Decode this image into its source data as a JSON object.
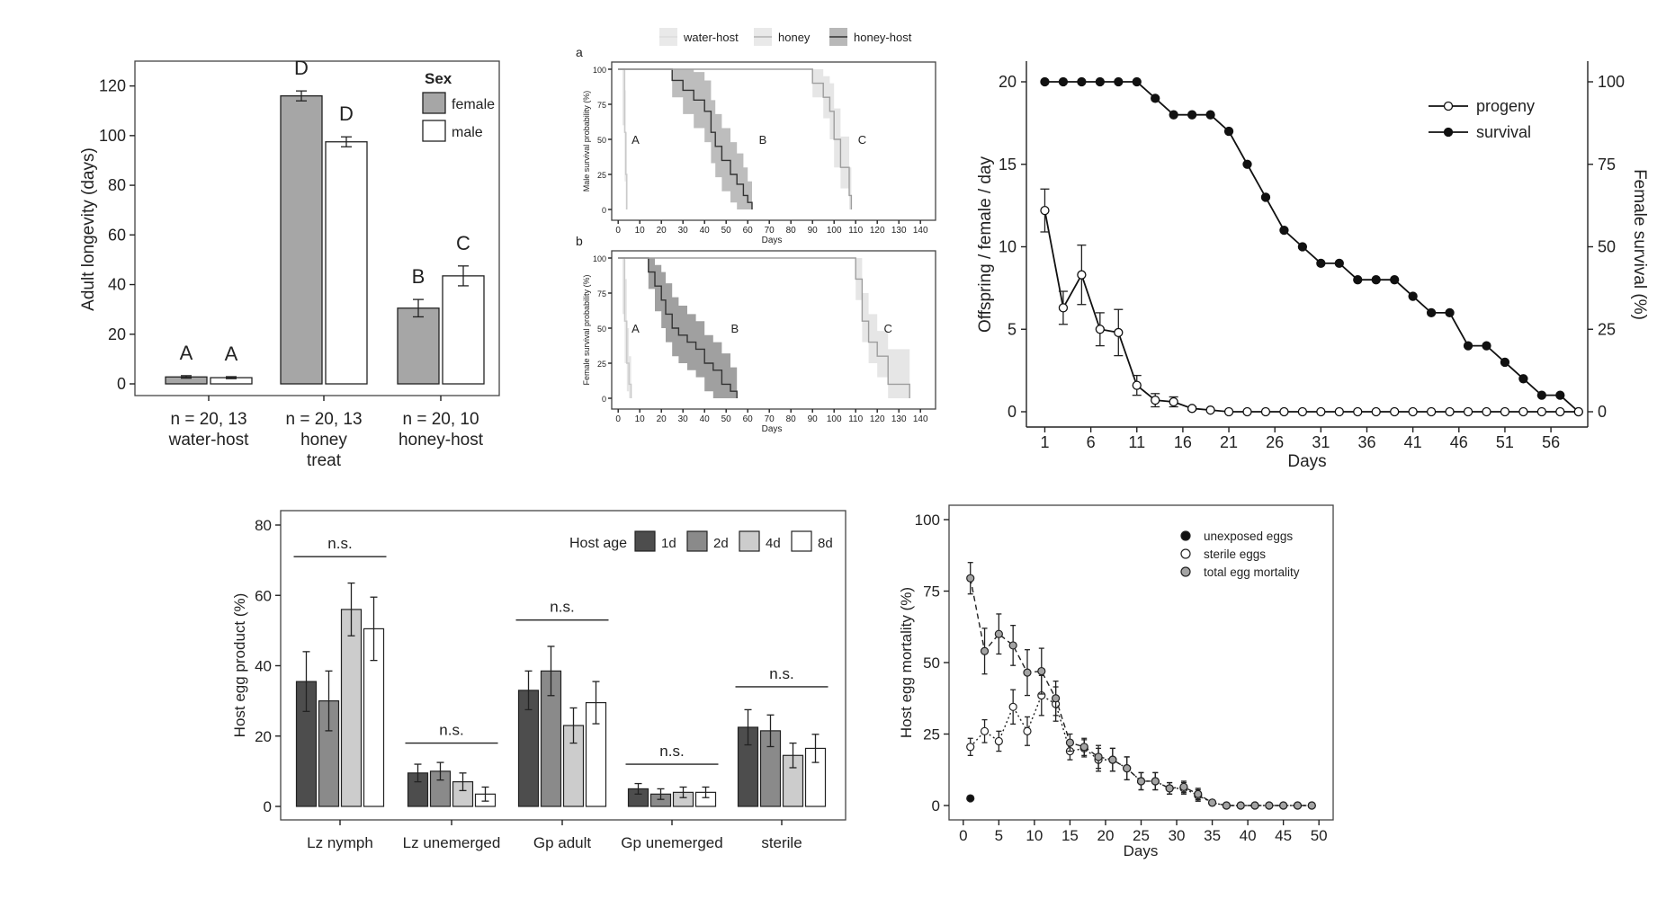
{
  "chart_data": [
    {
      "id": "longevity",
      "type": "bar",
      "ylabel": "Adult longevity (days)",
      "ylim": [
        0,
        130
      ],
      "yticks": [
        0,
        20,
        40,
        60,
        80,
        100,
        120
      ],
      "legend": {
        "title": "Sex",
        "position": "top-right",
        "entries": [
          "female",
          "male"
        ]
      },
      "categories": [
        {
          "lines": [
            "n = 20, 13",
            "water-host"
          ]
        },
        {
          "lines": [
            "n = 20, 13",
            "honey",
            "treat"
          ]
        },
        {
          "lines": [
            "n = 20, 10",
            "honey-host"
          ]
        }
      ],
      "series": [
        {
          "name": "female",
          "color": "#a6a6a6",
          "values": [
            2.8,
            116,
            30.5
          ],
          "err": [
            0.5,
            2.0,
            3.5
          ],
          "letters": [
            "A",
            "D",
            "B"
          ]
        },
        {
          "name": "male",
          "color": "#ffffff",
          "values": [
            2.5,
            97.5,
            43.5
          ],
          "err": [
            0.4,
            2.0,
            4.0
          ],
          "letters": [
            "A",
            "D",
            "C"
          ]
        }
      ],
      "grid": false
    },
    {
      "id": "survival_curves",
      "type": "line",
      "legend": {
        "position": "top",
        "entries": [
          {
            "name": "water-host",
            "color": "#dcdcdc"
          },
          {
            "name": "honey",
            "color": "#b3b3b3"
          },
          {
            "name": "honey-host",
            "color": "#333333"
          }
        ]
      },
      "xlabel": "Days",
      "xticks": [
        0,
        10,
        20,
        30,
        40,
        50,
        60,
        70,
        80,
        90,
        100,
        110,
        120,
        130,
        140
      ],
      "yticks": [
        0,
        25,
        50,
        75,
        100
      ],
      "panels": [
        {
          "label": "a",
          "ylabel": "Male survival probability (%)",
          "curves": [
            {
              "letter": "A",
              "letter_pos": [
                8,
                50
              ],
              "line_color": "#c8c8c8",
              "band_color": "#e6e6e6",
              "x": [
                0,
                2,
                3,
                3.5,
                4
              ],
              "y": [
                100,
                100,
                55,
                25,
                0
              ],
              "lo": [
                100,
                60,
                20,
                0,
                0
              ],
              "hi": [
                100,
                100,
                85,
                55,
                0
              ]
            },
            {
              "letter": "B",
              "letter_pos": [
                67,
                50
              ],
              "line_color": "#333333",
              "band_color": "#bdbdbd",
              "x": [
                0,
                20,
                25,
                30,
                35,
                40,
                43,
                45,
                48,
                52,
                55,
                58,
                60,
                62
              ],
              "y": [
                100,
                100,
                92,
                85,
                78,
                70,
                55,
                45,
                35,
                25,
                18,
                10,
                5,
                0
              ],
              "lo": [
                100,
                100,
                80,
                68,
                58,
                48,
                33,
                23,
                13,
                5,
                0,
                0,
                0,
                0
              ],
              "hi": [
                100,
                100,
                100,
                100,
                98,
                92,
                78,
                68,
                58,
                48,
                40,
                30,
                20,
                0
              ]
            },
            {
              "letter": "C",
              "letter_pos": [
                113,
                50
              ],
              "line_color": "#9e9e9e",
              "band_color": "#e6e6e6",
              "x": [
                0,
                87,
                90,
                95,
                98,
                100,
                103,
                107,
                108
              ],
              "y": [
                100,
                100,
                90,
                80,
                70,
                50,
                30,
                10,
                0
              ],
              "lo": [
                100,
                100,
                80,
                65,
                50,
                30,
                15,
                0,
                0
              ],
              "hi": [
                100,
                100,
                100,
                95,
                90,
                72,
                52,
                30,
                0
              ]
            }
          ]
        },
        {
          "label": "b",
          "ylabel": "Female survival probability (%)",
          "curves": [
            {
              "letter": "A",
              "letter_pos": [
                8,
                50
              ],
              "line_color": "#c8c8c8",
              "band_color": "#e6e6e6",
              "x": [
                0,
                2,
                3,
                4,
                5,
                6
              ],
              "y": [
                100,
                100,
                55,
                25,
                10,
                0
              ],
              "lo": [
                100,
                60,
                25,
                5,
                0,
                0
              ],
              "hi": [
                100,
                100,
                85,
                50,
                30,
                0
              ]
            },
            {
              "letter": "B",
              "letter_pos": [
                54,
                50
              ],
              "line_color": "#333333",
              "band_color": "#a0a0a0",
              "x": [
                0,
                10,
                14,
                17,
                20,
                22,
                25,
                28,
                32,
                36,
                40,
                44,
                48,
                52,
                55
              ],
              "y": [
                100,
                100,
                90,
                80,
                70,
                60,
                50,
                45,
                40,
                35,
                25,
                20,
                10,
                5,
                0
              ],
              "lo": [
                100,
                100,
                78,
                62,
                50,
                40,
                30,
                25,
                20,
                15,
                5,
                0,
                0,
                0,
                0
              ],
              "hi": [
                100,
                100,
                100,
                95,
                90,
                82,
                72,
                66,
                60,
                55,
                45,
                40,
                32,
                22,
                0
              ]
            },
            {
              "letter": "C",
              "letter_pos": [
                125,
                50
              ],
              "line_color": "#9e9e9e",
              "band_color": "#e6e6e6",
              "x": [
                0,
                107,
                110,
                113,
                116,
                120,
                125,
                130,
                133,
                135
              ],
              "y": [
                100,
                100,
                85,
                55,
                40,
                30,
                10,
                10,
                10,
                0
              ],
              "lo": [
                100,
                100,
                70,
                40,
                25,
                15,
                0,
                0,
                0,
                0
              ],
              "hi": [
                100,
                100,
                100,
                75,
                60,
                48,
                35,
                35,
                35,
                0
              ]
            }
          ]
        }
      ]
    },
    {
      "id": "progeny_survival",
      "type": "line",
      "xlabel": "Days",
      "ylabel": "Offspring / female / day",
      "y2label": "Female survival (%)",
      "xlim": [
        -1,
        60
      ],
      "ylim": [
        0,
        21
      ],
      "y2lim": [
        0,
        105
      ],
      "xticks": [
        1,
        6,
        11,
        16,
        21,
        26,
        31,
        36,
        41,
        46,
        51,
        56
      ],
      "yticks": [
        0,
        5,
        10,
        15,
        20
      ],
      "y2ticks": [
        0,
        25,
        50,
        75,
        100
      ],
      "legend": {
        "position": "top-right",
        "entries": [
          "progeny",
          "survival"
        ]
      },
      "series": [
        {
          "name": "survival",
          "axis": "right",
          "marker": "filled",
          "x": [
            1,
            3,
            5,
            7,
            9,
            11,
            13,
            15,
            17,
            19,
            21,
            23,
            25,
            27,
            29,
            31,
            33,
            35,
            37,
            39,
            41,
            43,
            45,
            47,
            49,
            51,
            53,
            55,
            57,
            59
          ],
          "y": [
            100,
            100,
            100,
            100,
            100,
            100,
            95,
            90,
            90,
            90,
            85,
            75,
            65,
            55,
            50,
            45,
            45,
            40,
            40,
            40,
            35,
            30,
            30,
            20,
            20,
            15,
            10,
            5,
            5,
            0
          ]
        },
        {
          "name": "progeny",
          "axis": "left",
          "marker": "open",
          "x": [
            1,
            3,
            5,
            7,
            9,
            11,
            13,
            15,
            17,
            19,
            21,
            23,
            25,
            27,
            29,
            31,
            33,
            35,
            37,
            39,
            41,
            43,
            45,
            47,
            49,
            51,
            53,
            55,
            57,
            59
          ],
          "y": [
            12.2,
            6.3,
            8.3,
            5.0,
            4.8,
            1.6,
            0.7,
            0.6,
            0.2,
            0.1,
            0,
            0,
            0,
            0,
            0,
            0,
            0,
            0,
            0,
            0,
            0,
            0,
            0,
            0,
            0,
            0,
            0,
            0,
            0,
            0
          ],
          "err": [
            1.3,
            1.0,
            1.8,
            1.0,
            1.4,
            0.6,
            0.4,
            0.3,
            0.1,
            0,
            0,
            0,
            0,
            0,
            0,
            0,
            0,
            0,
            0,
            0,
            0,
            0,
            0,
            0,
            0,
            0,
            0,
            0,
            0,
            0
          ]
        }
      ]
    },
    {
      "id": "host_egg_product",
      "type": "bar",
      "ylabel": "Host egg product (%)",
      "ylim": [
        0,
        80
      ],
      "yticks": [
        0,
        20,
        40,
        60,
        80
      ],
      "legend": {
        "title": "Host age",
        "position": "top-right",
        "entries": [
          "1d",
          "2d",
          "4d",
          "8d"
        ]
      },
      "categories": [
        "Lz nymph",
        "Lz unemerged",
        "Gp adult",
        "Gp unemerged",
        "sterile"
      ],
      "significance": [
        "n.s.",
        "n.s.",
        "n.s.",
        "n.s.",
        "n.s."
      ],
      "significance_y": [
        71,
        18,
        53,
        12,
        34
      ],
      "series": [
        {
          "name": "1d",
          "color": "#4d4d4d",
          "values": [
            35.5,
            9.5,
            33,
            5,
            22.5
          ],
          "err": [
            8.5,
            2.5,
            5.5,
            1.5,
            5
          ]
        },
        {
          "name": "2d",
          "color": "#8a8a8a",
          "values": [
            30,
            10,
            38.5,
            3.5,
            21.5
          ],
          "err": [
            8.5,
            2.5,
            7,
            1.5,
            4.5
          ]
        },
        {
          "name": "4d",
          "color": "#cccccc",
          "values": [
            56,
            7,
            23,
            4,
            14.5
          ],
          "err": [
            7.5,
            2.5,
            5,
            1.5,
            3.5
          ]
        },
        {
          "name": "8d",
          "color": "#ffffff",
          "values": [
            50.5,
            3.5,
            29.5,
            4,
            16.5
          ],
          "err": [
            9,
            2,
            6,
            1.5,
            4
          ]
        }
      ],
      "grid": false
    },
    {
      "id": "egg_mortality",
      "type": "line",
      "xlabel": "Days",
      "ylabel": "Host egg mortality (%)",
      "xlim": [
        -2,
        52
      ],
      "ylim": [
        -4,
        105
      ],
      "xticks": [
        0,
        5,
        10,
        15,
        20,
        25,
        30,
        35,
        40,
        45,
        50
      ],
      "yticks": [
        0,
        25,
        50,
        75,
        100
      ],
      "legend": {
        "position": "top-right",
        "entries": [
          "unexposed eggs",
          "sterile eggs",
          "total egg mortality"
        ]
      },
      "series": [
        {
          "name": "unexposed eggs",
          "color": "#111111",
          "marker": "filled",
          "line": "none",
          "x": [
            1
          ],
          "y": [
            2.5
          ],
          "err": [
            0
          ]
        },
        {
          "name": "sterile eggs",
          "color": "#ffffff",
          "marker": "open",
          "line": "dotted",
          "x": [
            1,
            3,
            5,
            7,
            9,
            11,
            13,
            15,
            17,
            19,
            21,
            23,
            25,
            27,
            29,
            31,
            33,
            35,
            37,
            39,
            41,
            43,
            45,
            47,
            49
          ],
          "y": [
            20.5,
            26,
            22.5,
            34.5,
            26,
            38.5,
            35.5,
            19,
            20,
            16,
            16,
            13,
            8.5,
            8.5,
            6,
            6,
            3.5,
            1,
            0,
            0,
            0,
            0,
            0,
            0,
            0
          ],
          "err": [
            3,
            4,
            3.5,
            6,
            5,
            7,
            6,
            3,
            3,
            4,
            4,
            4,
            3,
            3,
            2,
            2,
            2,
            0.5,
            0,
            0,
            0,
            0,
            0,
            0,
            0
          ]
        },
        {
          "name": "total egg mortality",
          "color": "#a3a3a3",
          "marker": "open",
          "line": "dashed",
          "x": [
            1,
            3,
            5,
            7,
            9,
            11,
            13,
            15,
            17,
            19,
            21,
            23,
            25,
            27,
            29,
            31,
            33,
            35,
            37,
            39,
            41,
            43,
            45,
            47,
            49
          ],
          "y": [
            79.5,
            54,
            60,
            56,
            46.5,
            47,
            37.5,
            22,
            20.5,
            17,
            16,
            13,
            8.5,
            8.5,
            6,
            6.5,
            4,
            1,
            0,
            0,
            0,
            0,
            0,
            0,
            0
          ],
          "err": [
            5.5,
            8,
            7,
            7,
            8,
            8,
            6,
            3,
            3,
            4,
            4,
            4,
            3,
            3,
            2,
            2,
            2,
            0.5,
            0,
            0,
            0,
            0,
            0,
            0,
            0
          ]
        }
      ]
    }
  ]
}
